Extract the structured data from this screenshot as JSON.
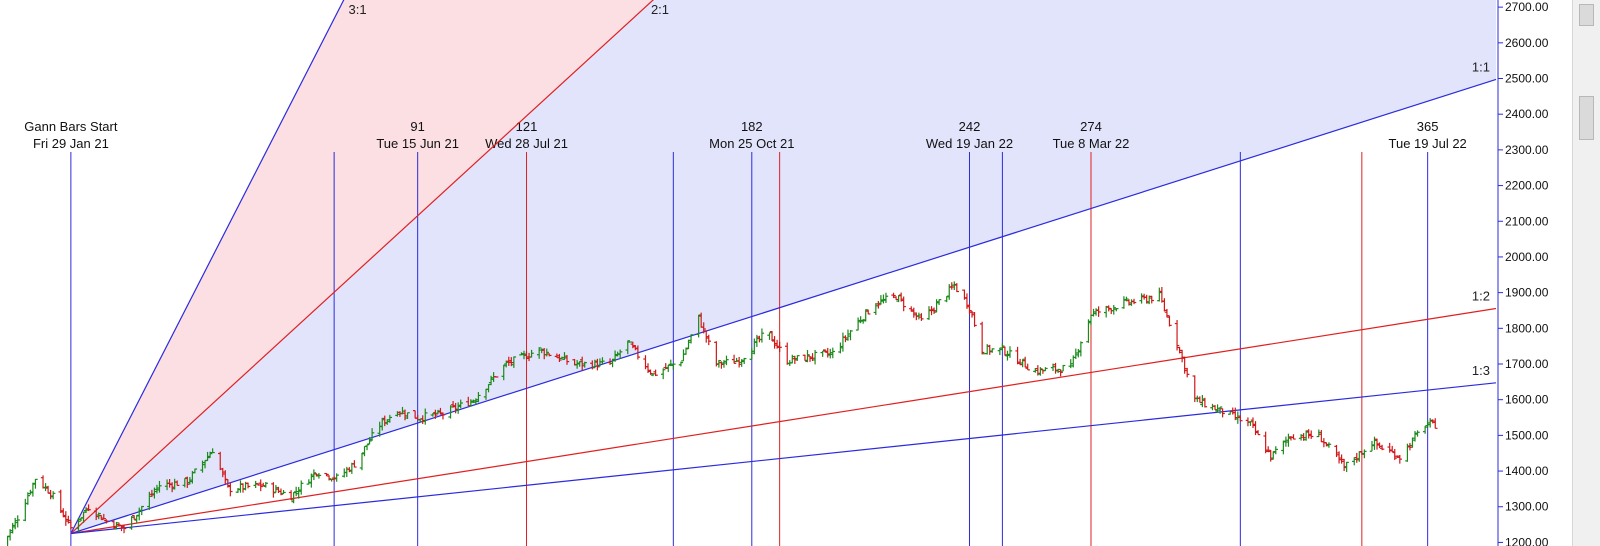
{
  "chart_data": {
    "type": "line",
    "title": "",
    "xlabel": "",
    "ylabel": "",
    "x_range": [
      "2021-01-01",
      "2022-08-15"
    ],
    "ylim": [
      1190,
      2720
    ],
    "y_ticks": [
      1200,
      1300,
      1400,
      1500,
      1600,
      1700,
      1800,
      1900,
      2000,
      2100,
      2200,
      2300,
      2400,
      2500,
      2600,
      2700
    ],
    "grid": false,
    "legend": "none",
    "colors": {
      "blue": "#2b2bdd",
      "red": "#e02020",
      "fill_blue": "#e2e4fb",
      "fill_red": "#fbdfe3",
      "bar_up": "#1a8a1a",
      "bar_down": "#d01818"
    },
    "gann_start": {
      "date": "2021-01-29",
      "price": 1225
    },
    "fan_lines": [
      {
        "label": "3:1",
        "color": "blue",
        "slope_per_day": 13.87
      },
      {
        "label": "2:1",
        "color": "red",
        "slope_per_day": 6.5
      },
      {
        "label": "1:1",
        "color": "blue",
        "slope_per_day": 2.26
      },
      {
        "label": "1:2",
        "color": "red",
        "slope_per_day": 1.12
      },
      {
        "label": "1:3",
        "color": "blue",
        "slope_per_day": 0.75
      }
    ],
    "date_markers": [
      {
        "date": "2021-01-29",
        "color": "blue",
        "label_top": "Gann Bars Start",
        "label_bottom": "Fri 29 Jan 21"
      },
      {
        "date": "2021-05-13",
        "color": "blue"
      },
      {
        "date": "2021-06-15",
        "color": "blue",
        "label_top": "91",
        "label_bottom": "Tue 15 Jun 21"
      },
      {
        "date": "2021-07-28",
        "color": "red",
        "label_top": "121",
        "label_bottom": "Wed 28 Jul 21"
      },
      {
        "date": "2021-09-24",
        "color": "blue"
      },
      {
        "date": "2021-10-25",
        "color": "blue",
        "label_top": "182",
        "label_bottom": "Mon 25 Oct 21"
      },
      {
        "date": "2021-11-05",
        "color": "red"
      },
      {
        "date": "2022-01-19",
        "color": "blue",
        "label_top": "242",
        "label_bottom": "Wed 19 Jan 22"
      },
      {
        "date": "2022-02-01",
        "color": "blue"
      },
      {
        "date": "2022-03-08",
        "color": "red",
        "label_top": "274",
        "label_bottom": "Tue 8 Mar 22"
      },
      {
        "date": "2022-05-06",
        "color": "blue"
      },
      {
        "date": "2022-06-23",
        "color": "red"
      },
      {
        "date": "2022-07-19",
        "color": "blue",
        "label_top": "365",
        "label_bottom": "Tue 19 Jul 22"
      }
    ],
    "price_path": [
      [
        "2021-01-01",
        1180
      ],
      [
        "2021-01-08",
        1270
      ],
      [
        "2021-01-15",
        1380
      ],
      [
        "2021-01-21",
        1340
      ],
      [
        "2021-01-29",
        1240
      ],
      [
        "2021-02-05",
        1300
      ],
      [
        "2021-02-12",
        1260
      ],
      [
        "2021-02-19",
        1240
      ],
      [
        "2021-03-05",
        1360
      ],
      [
        "2021-03-16",
        1370
      ],
      [
        "2021-03-26",
        1460
      ],
      [
        "2021-04-01",
        1350
      ],
      [
        "2021-04-15",
        1360
      ],
      [
        "2021-04-26",
        1330
      ],
      [
        "2021-05-06",
        1400
      ],
      [
        "2021-05-14",
        1380
      ],
      [
        "2021-05-21",
        1420
      ],
      [
        "2021-05-31",
        1530
      ],
      [
        "2021-06-07",
        1570
      ],
      [
        "2021-06-15",
        1550
      ],
      [
        "2021-06-25",
        1560
      ],
      [
        "2021-07-07",
        1600
      ],
      [
        "2021-07-20",
        1700
      ],
      [
        "2021-08-02",
        1740
      ],
      [
        "2021-08-16",
        1700
      ],
      [
        "2021-08-30",
        1700
      ],
      [
        "2021-09-06",
        1760
      ],
      [
        "2021-09-16",
        1670
      ],
      [
        "2021-09-27",
        1710
      ],
      [
        "2021-10-04",
        1830
      ],
      [
        "2021-10-11",
        1700
      ],
      [
        "2021-10-20",
        1710
      ],
      [
        "2021-10-31",
        1790
      ],
      [
        "2021-11-08",
        1710
      ],
      [
        "2021-11-17",
        1720
      ],
      [
        "2021-11-26",
        1730
      ],
      [
        "2021-12-06",
        1820
      ],
      [
        "2021-12-13",
        1870
      ],
      [
        "2021-12-21",
        1890
      ],
      [
        "2021-12-31",
        1820
      ],
      [
        "2022-01-13",
        1920
      ],
      [
        "2022-01-19",
        1860
      ],
      [
        "2022-01-24",
        1740
      ],
      [
        "2022-02-01",
        1740
      ],
      [
        "2022-02-14",
        1680
      ],
      [
        "2022-02-28",
        1690
      ],
      [
        "2022-03-08",
        1840
      ],
      [
        "2022-03-21",
        1870
      ],
      [
        "2022-04-04",
        1890
      ],
      [
        "2022-04-11",
        1760
      ],
      [
        "2022-04-18",
        1600
      ],
      [
        "2022-04-28",
        1570
      ],
      [
        "2022-05-10",
        1530
      ],
      [
        "2022-05-18",
        1440
      ],
      [
        "2022-05-26",
        1500
      ],
      [
        "2022-06-06",
        1500
      ],
      [
        "2022-06-16",
        1410
      ],
      [
        "2022-06-27",
        1480
      ],
      [
        "2022-07-08",
        1440
      ],
      [
        "2022-07-18",
        1530
      ],
      [
        "2022-07-22",
        1530
      ]
    ]
  }
}
